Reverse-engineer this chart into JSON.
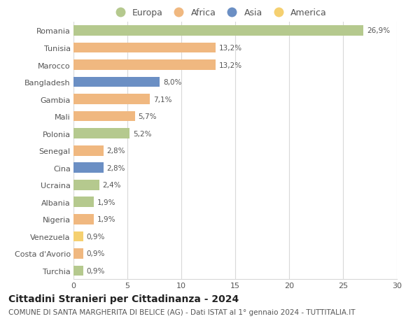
{
  "countries": [
    "Romania",
    "Tunisia",
    "Marocco",
    "Bangladesh",
    "Gambia",
    "Mali",
    "Polonia",
    "Senegal",
    "Cina",
    "Ucraina",
    "Albania",
    "Nigeria",
    "Venezuela",
    "Costa d'Avorio",
    "Turchia"
  ],
  "values": [
    26.9,
    13.2,
    13.2,
    8.0,
    7.1,
    5.7,
    5.2,
    2.8,
    2.8,
    2.4,
    1.9,
    1.9,
    0.9,
    0.9,
    0.9
  ],
  "labels": [
    "26,9%",
    "13,2%",
    "13,2%",
    "8,0%",
    "7,1%",
    "5,7%",
    "5,2%",
    "2,8%",
    "2,8%",
    "2,4%",
    "1,9%",
    "1,9%",
    "0,9%",
    "0,9%",
    "0,9%"
  ],
  "continents": [
    "Europa",
    "Africa",
    "Africa",
    "Asia",
    "Africa",
    "Africa",
    "Europa",
    "Africa",
    "Asia",
    "Europa",
    "Europa",
    "Africa",
    "America",
    "Africa",
    "Europa"
  ],
  "colors": {
    "Europa": "#b5c98e",
    "Africa": "#f0b880",
    "Asia": "#6b8fc4",
    "America": "#f5d070"
  },
  "legend_order": [
    "Europa",
    "Africa",
    "Asia",
    "America"
  ],
  "title": "Cittadini Stranieri per Cittadinanza - 2024",
  "subtitle": "COMUNE DI SANTA MARGHERITA DI BELICE (AG) - Dati ISTAT al 1° gennaio 2024 - TUTTITALIA.IT",
  "xlim": [
    0,
    30
  ],
  "xticks": [
    0,
    5,
    10,
    15,
    20,
    25,
    30
  ],
  "background_color": "#ffffff",
  "grid_color": "#d8d8d8",
  "title_fontsize": 10,
  "subtitle_fontsize": 7.5,
  "label_fontsize": 7.5,
  "tick_fontsize": 8,
  "legend_fontsize": 9
}
